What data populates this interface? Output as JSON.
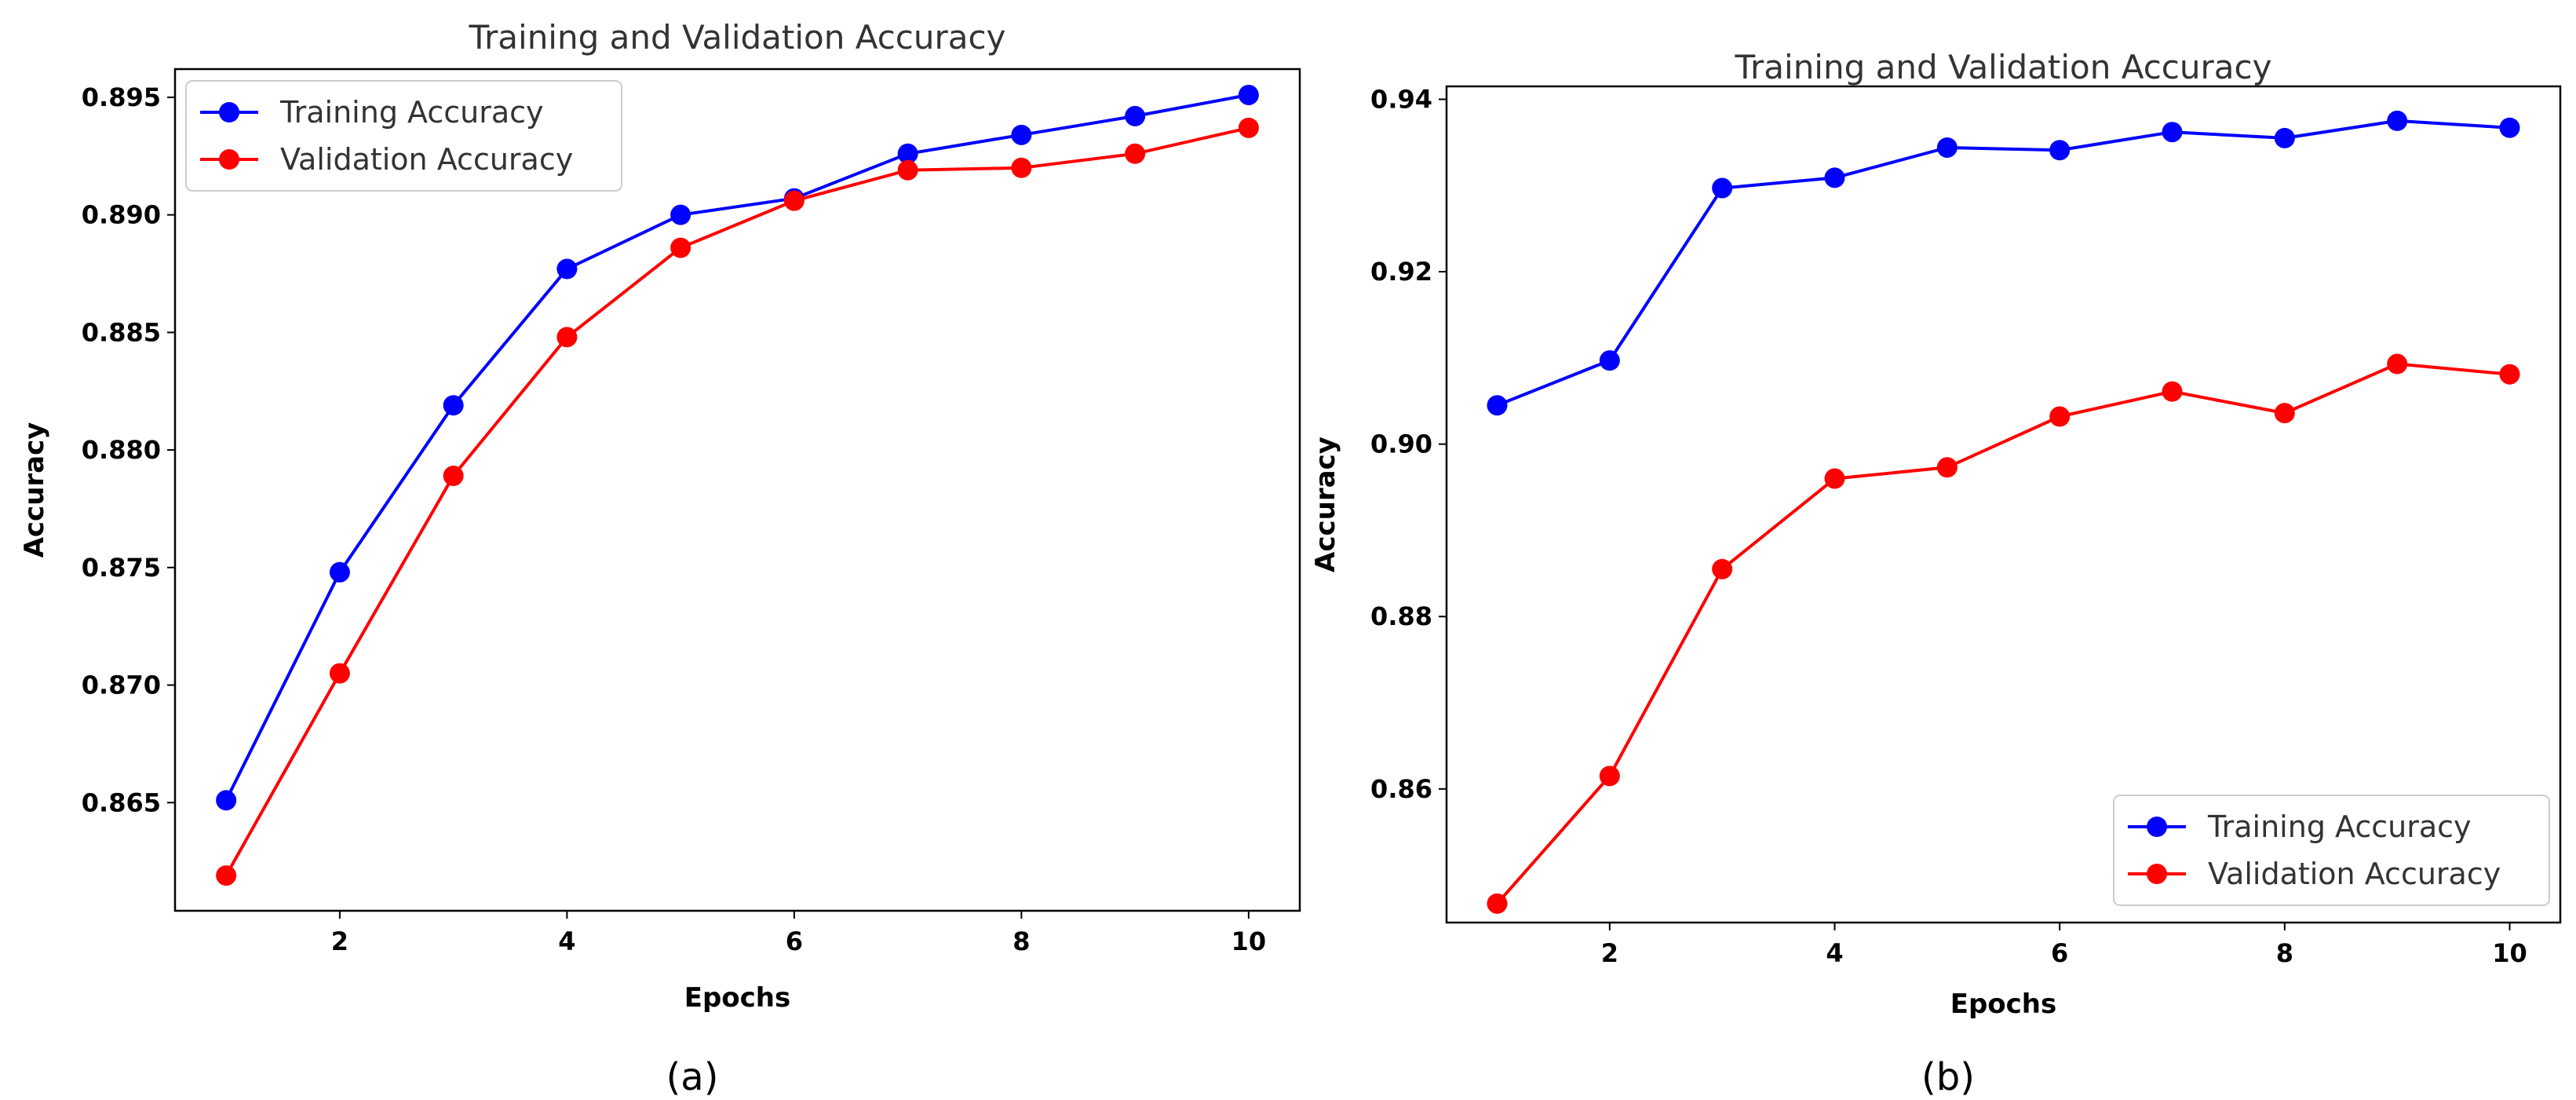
{
  "chart_data": [
    {
      "type": "line",
      "title": "Training and Validation Accuracy",
      "caption": "(a)",
      "xlabel": "Epochs",
      "ylabel": "Accuracy",
      "x": [
        1,
        2,
        3,
        4,
        5,
        6,
        7,
        8,
        9,
        10
      ],
      "xticks": [
        2,
        4,
        6,
        8,
        10
      ],
      "xlim": [
        0.55,
        10.45
      ],
      "yticks": [
        0.865,
        0.87,
        0.875,
        0.88,
        0.885,
        0.89,
        0.895
      ],
      "ytick_labels": [
        "0.865",
        "0.870",
        "0.875",
        "0.880",
        "0.885",
        "0.890",
        "0.895"
      ],
      "ylim": [
        0.8604,
        0.8962
      ],
      "legend_position": "top-left",
      "grid": false,
      "series": [
        {
          "name": "Training Accuracy",
          "color": "#0000ff",
          "values": [
            0.8651,
            0.8748,
            0.8819,
            0.8877,
            0.89,
            0.8907,
            0.8926,
            0.8934,
            0.8942,
            0.8951
          ]
        },
        {
          "name": "Validation Accuracy",
          "color": "#ff0000",
          "values": [
            0.8619,
            0.8705,
            0.8789,
            0.8848,
            0.8886,
            0.8906,
            0.8919,
            0.892,
            0.8926,
            0.8937
          ]
        }
      ]
    },
    {
      "type": "line",
      "title": "Training and Validation Accuracy",
      "caption": "(b)",
      "xlabel": "Epochs",
      "ylabel": "Accuracy",
      "x": [
        1,
        2,
        3,
        4,
        5,
        6,
        7,
        8,
        9,
        10
      ],
      "xticks": [
        2,
        4,
        6,
        8,
        10
      ],
      "xlim": [
        0.55,
        10.45
      ],
      "yticks": [
        0.86,
        0.88,
        0.9,
        0.92,
        0.94
      ],
      "ytick_labels": [
        "0.86",
        "0.88",
        "0.90",
        "0.92",
        "0.94"
      ],
      "ylim": [
        0.8445,
        0.9415
      ],
      "legend_position": "bottom-right",
      "grid": false,
      "series": [
        {
          "name": "Training Accuracy",
          "color": "#0000ff",
          "values": [
            0.9045,
            0.9097,
            0.9297,
            0.9309,
            0.9344,
            0.9341,
            0.9362,
            0.9355,
            0.9375,
            0.9367
          ]
        },
        {
          "name": "Validation Accuracy",
          "color": "#ff0000",
          "values": [
            0.8467,
            0.8615,
            0.8855,
            0.896,
            0.8973,
            0.9032,
            0.9061,
            0.9036,
            0.9093,
            0.9081
          ]
        }
      ]
    }
  ]
}
